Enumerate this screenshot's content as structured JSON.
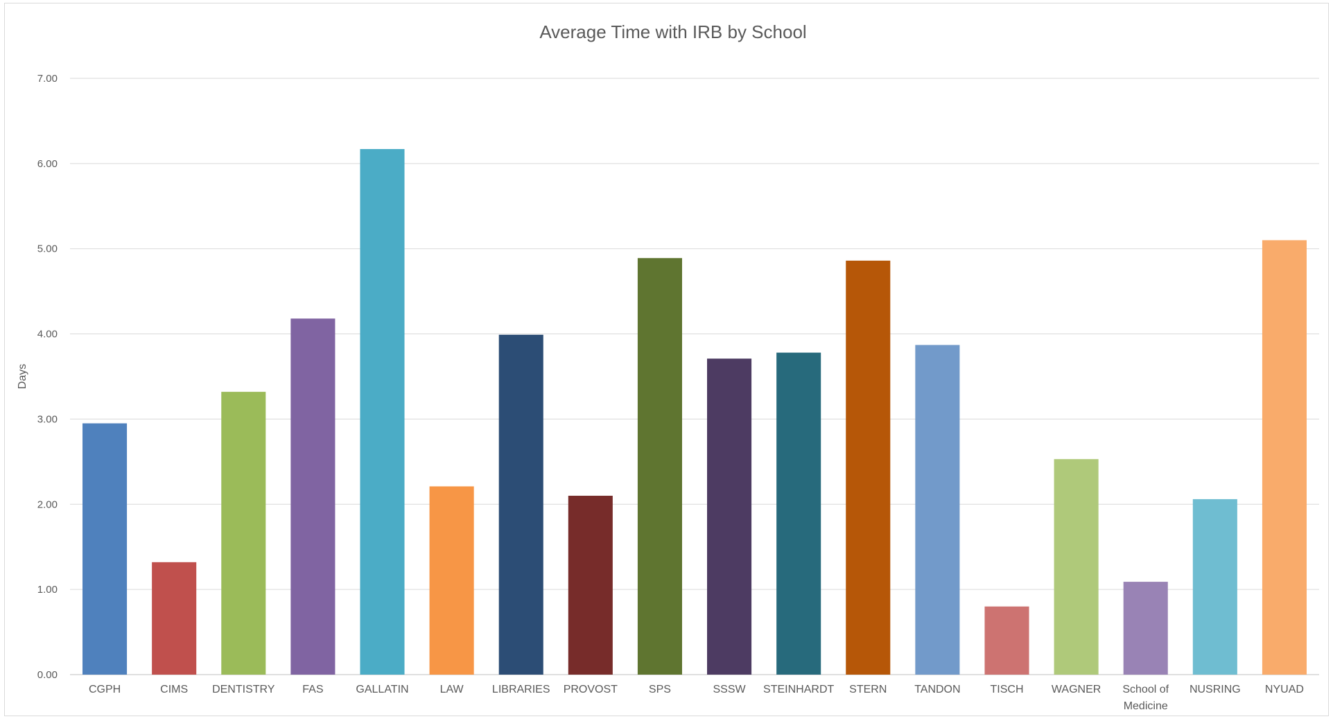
{
  "chart_data": {
    "type": "bar",
    "title": "Average Time with IRB by School",
    "xlabel": "",
    "ylabel": "Days",
    "ylim": [
      0,
      7
    ],
    "yticks": [
      "0.00",
      "1.00",
      "2.00",
      "3.00",
      "4.00",
      "5.00",
      "6.00",
      "7.00"
    ],
    "grid": true,
    "legend": "none",
    "categories": [
      [
        "CGPH"
      ],
      [
        "CIMS"
      ],
      [
        "DENTISTRY"
      ],
      [
        "FAS"
      ],
      [
        "GALLATIN"
      ],
      [
        "LAW"
      ],
      [
        "LIBRARIES"
      ],
      [
        "PROVOST"
      ],
      [
        "SPS"
      ],
      [
        "SSSW"
      ],
      [
        "STEINHARDT"
      ],
      [
        "STERN"
      ],
      [
        "TANDON"
      ],
      [
        "TISCH"
      ],
      [
        "WAGNER"
      ],
      [
        "School of",
        "Medicine"
      ],
      [
        "NUSRING"
      ],
      [
        "NYUAD"
      ]
    ],
    "values": [
      2.95,
      1.32,
      3.32,
      4.18,
      6.17,
      2.21,
      3.99,
      2.1,
      4.89,
      3.71,
      3.78,
      4.86,
      3.87,
      0.8,
      2.53,
      1.09,
      2.06,
      5.1
    ],
    "colors": [
      "#4f81bd",
      "#c0504d",
      "#9bbb59",
      "#8064a2",
      "#4bacc6",
      "#f79646",
      "#2c4d75",
      "#772c2a",
      "#5f7530",
      "#4d3b62",
      "#276a7c",
      "#b65708",
      "#729aca",
      "#cd7371",
      "#afc97a",
      "#9983b5",
      "#6fbdd1",
      "#f9ab6b"
    ]
  }
}
